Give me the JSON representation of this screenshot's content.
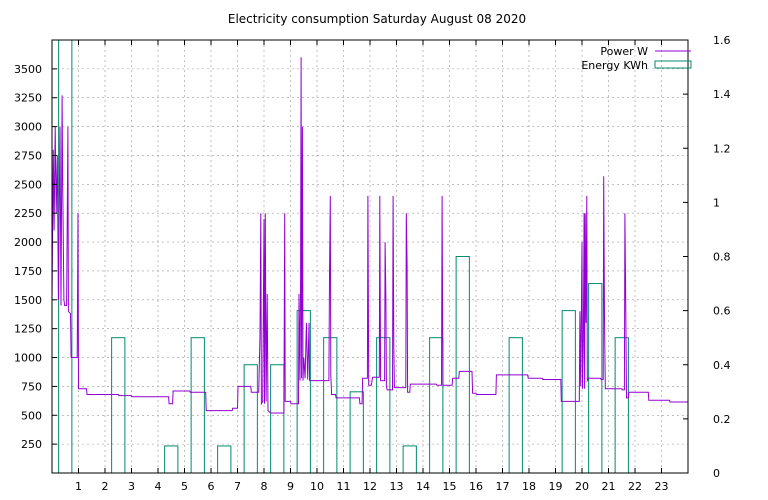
{
  "chart_data": {
    "type": "line",
    "title": "Electricity consumption Saturday August 08 2020",
    "xlabel": "",
    "ylabel": "",
    "y2label": "",
    "grid": true,
    "legend_position": "top-right",
    "xlim": [
      0,
      24
    ],
    "ylim": [
      0,
      3750
    ],
    "y2lim": [
      0,
      1.6
    ],
    "x_ticks": [
      1,
      2,
      3,
      4,
      5,
      6,
      7,
      8,
      9,
      10,
      11,
      12,
      13,
      14,
      15,
      16,
      17,
      18,
      19,
      20,
      21,
      22,
      23
    ],
    "y_ticks": [
      250,
      500,
      750,
      1000,
      1250,
      1500,
      1750,
      2000,
      2250,
      2500,
      2750,
      3000,
      3250,
      3500
    ],
    "y2_ticks": [
      0,
      0.2,
      0.4,
      0.6,
      0.8,
      1,
      1.2,
      1.4,
      1.6
    ],
    "series": [
      {
        "name": "Power W",
        "axis": "y",
        "color": "#9400d3",
        "style": "line",
        "points": [
          [
            0.0,
            1500
          ],
          [
            0.05,
            2800
          ],
          [
            0.08,
            2100
          ],
          [
            0.12,
            3000
          ],
          [
            0.16,
            2250
          ],
          [
            0.2,
            2750
          ],
          [
            0.24,
            1500
          ],
          [
            0.3,
            3000
          ],
          [
            0.34,
            1450
          ],
          [
            0.38,
            3270
          ],
          [
            0.4,
            2600
          ],
          [
            0.45,
            1500
          ],
          [
            0.48,
            1450
          ],
          [
            0.55,
            1450
          ],
          [
            0.6,
            3000
          ],
          [
            0.62,
            1400
          ],
          [
            0.7,
            1380
          ],
          [
            0.72,
            1000
          ],
          [
            0.95,
            1000
          ],
          [
            0.98,
            2250
          ],
          [
            1.0,
            730
          ],
          [
            1.3,
            730
          ],
          [
            1.32,
            680
          ],
          [
            2.5,
            680
          ],
          [
            2.52,
            670
          ],
          [
            3.0,
            670
          ],
          [
            3.02,
            660
          ],
          [
            4.4,
            660
          ],
          [
            4.42,
            600
          ],
          [
            4.55,
            600
          ],
          [
            4.57,
            710
          ],
          [
            5.2,
            710
          ],
          [
            5.22,
            700
          ],
          [
            5.8,
            700
          ],
          [
            5.82,
            540
          ],
          [
            6.8,
            540
          ],
          [
            6.82,
            560
          ],
          [
            7.0,
            560
          ],
          [
            7.02,
            750
          ],
          [
            7.5,
            750
          ],
          [
            7.52,
            700
          ],
          [
            7.8,
            700
          ],
          [
            7.85,
            1200
          ],
          [
            7.88,
            2250
          ],
          [
            7.9,
            600
          ],
          [
            7.95,
            620
          ],
          [
            8.0,
            2200
          ],
          [
            8.02,
            600
          ],
          [
            8.05,
            2250
          ],
          [
            8.08,
            620
          ],
          [
            8.12,
            1550
          ],
          [
            8.15,
            540
          ],
          [
            8.25,
            520
          ],
          [
            8.75,
            520
          ],
          [
            8.78,
            2250
          ],
          [
            8.8,
            620
          ],
          [
            9.0,
            620
          ],
          [
            9.02,
            600
          ],
          [
            9.3,
            600
          ],
          [
            9.32,
            1550
          ],
          [
            9.36,
            800
          ],
          [
            9.38,
            1700
          ],
          [
            9.4,
            3600
          ],
          [
            9.42,
            820
          ],
          [
            9.45,
            3000
          ],
          [
            9.47,
            800
          ],
          [
            9.5,
            1000
          ],
          [
            9.55,
            820
          ],
          [
            9.6,
            1300
          ],
          [
            9.65,
            810
          ],
          [
            9.7,
            1300
          ],
          [
            9.72,
            800
          ],
          [
            10.45,
            800
          ],
          [
            10.47,
            1700
          ],
          [
            10.5,
            2400
          ],
          [
            10.52,
            850
          ],
          [
            10.55,
            680
          ],
          [
            10.7,
            680
          ],
          [
            10.72,
            650
          ],
          [
            11.6,
            650
          ],
          [
            11.62,
            600
          ],
          [
            11.7,
            600
          ],
          [
            11.72,
            820
          ],
          [
            11.9,
            820
          ],
          [
            11.92,
            2400
          ],
          [
            11.95,
            760
          ],
          [
            12.05,
            760
          ],
          [
            12.1,
            830
          ],
          [
            12.35,
            830
          ],
          [
            12.37,
            2400
          ],
          [
            12.4,
            800
          ],
          [
            12.55,
            800
          ],
          [
            12.57,
            2000
          ],
          [
            12.6,
            1500
          ],
          [
            12.62,
            750
          ],
          [
            12.65,
            720
          ],
          [
            12.85,
            720
          ],
          [
            12.87,
            2400
          ],
          [
            12.9,
            1100
          ],
          [
            12.92,
            740
          ],
          [
            13.35,
            740
          ],
          [
            13.37,
            2250
          ],
          [
            13.4,
            1800
          ],
          [
            13.42,
            700
          ],
          [
            13.5,
            700
          ],
          [
            13.52,
            770
          ],
          [
            14.5,
            770
          ],
          [
            14.52,
            760
          ],
          [
            14.7,
            760
          ],
          [
            14.72,
            2400
          ],
          [
            14.75,
            760
          ],
          [
            15.1,
            760
          ],
          [
            15.12,
            820
          ],
          [
            15.35,
            820
          ],
          [
            15.37,
            880
          ],
          [
            15.85,
            880
          ],
          [
            15.87,
            690
          ],
          [
            16.0,
            690
          ],
          [
            16.02,
            680
          ],
          [
            16.75,
            680
          ],
          [
            16.77,
            850
          ],
          [
            17.95,
            850
          ],
          [
            17.97,
            820
          ],
          [
            18.5,
            820
          ],
          [
            18.52,
            810
          ],
          [
            19.2,
            810
          ],
          [
            19.22,
            620
          ],
          [
            19.9,
            620
          ],
          [
            19.92,
            1400
          ],
          [
            19.95,
            750
          ],
          [
            20.0,
            2000
          ],
          [
            20.02,
            730
          ],
          [
            20.05,
            1100
          ],
          [
            20.08,
            2250
          ],
          [
            20.1,
            730
          ],
          [
            20.12,
            2250
          ],
          [
            20.15,
            1300
          ],
          [
            20.18,
            2400
          ],
          [
            20.2,
            800
          ],
          [
            20.25,
            820
          ],
          [
            20.7,
            820
          ],
          [
            20.72,
            810
          ],
          [
            20.8,
            810
          ],
          [
            20.82,
            2570
          ],
          [
            20.85,
            1330
          ],
          [
            20.88,
            730
          ],
          [
            21.5,
            730
          ],
          [
            21.52,
            720
          ],
          [
            21.6,
            720
          ],
          [
            21.62,
            2250
          ],
          [
            21.65,
            1500
          ],
          [
            21.68,
            650
          ],
          [
            21.75,
            650
          ],
          [
            21.77,
            700
          ],
          [
            22.5,
            700
          ],
          [
            22.52,
            630
          ],
          [
            23.3,
            630
          ],
          [
            23.32,
            615
          ],
          [
            24.0,
            615
          ]
        ]
      },
      {
        "name": "Energy KWh",
        "axis": "y2",
        "color": "#008b6f",
        "style": "boxes",
        "bars": [
          [
            0,
            1.6
          ],
          [
            1,
            0
          ],
          [
            2,
            0.5
          ],
          [
            3,
            0
          ],
          [
            4,
            0.1
          ],
          [
            5,
            0.5
          ],
          [
            6,
            0.1
          ],
          [
            7,
            0.4
          ],
          [
            8,
            0.4
          ],
          [
            9,
            0.6
          ],
          [
            10,
            0.5
          ],
          [
            11,
            0.3
          ],
          [
            12,
            0.5
          ],
          [
            13,
            0.1
          ],
          [
            14,
            0.5
          ],
          [
            15,
            0.8
          ],
          [
            16,
            0
          ],
          [
            17,
            0.5
          ],
          [
            18,
            0
          ],
          [
            19,
            0.6
          ],
          [
            20,
            0.7
          ],
          [
            21,
            0.5
          ],
          [
            22,
            0
          ],
          [
            23,
            0
          ]
        ]
      }
    ]
  }
}
